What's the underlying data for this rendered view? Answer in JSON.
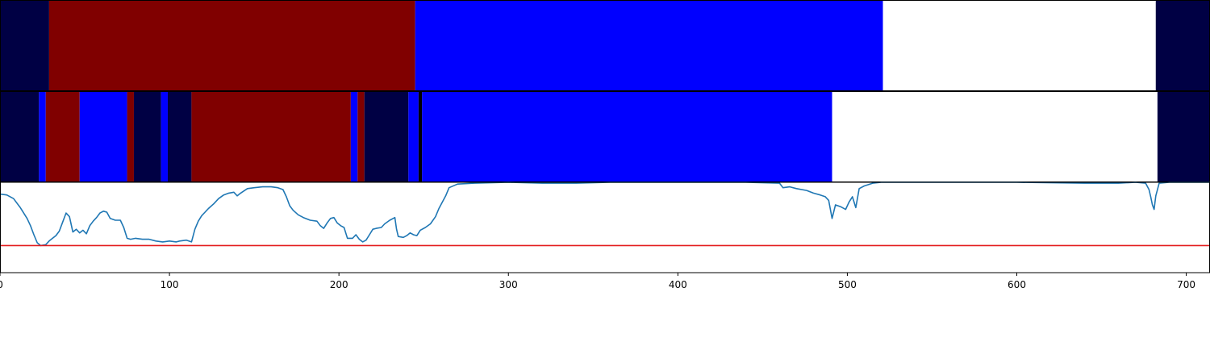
{
  "chart_data": {
    "type": "segmentation-timeline",
    "xlim": [
      0,
      714
    ],
    "x_ticks": [
      0,
      100,
      200,
      300,
      400,
      500,
      600,
      700
    ],
    "x_tick_labels": [
      "0",
      "100",
      "200",
      "300",
      "400",
      "500",
      "600",
      "700"
    ],
    "class_colors": {
      "navy": "#000044",
      "maroon": "#800000",
      "blue": "#0000ff",
      "white": "#ffffff",
      "black": "#000000"
    },
    "rows": [
      {
        "segments": [
          {
            "start": 0,
            "end": 29,
            "class": "navy"
          },
          {
            "start": 29,
            "end": 245,
            "class": "maroon"
          },
          {
            "start": 245,
            "end": 521,
            "class": "blue"
          },
          {
            "start": 521,
            "end": 682,
            "class": "white"
          },
          {
            "start": 682,
            "end": 714,
            "class": "navy"
          }
        ]
      },
      {
        "segments": [
          {
            "start": 0,
            "end": 23,
            "class": "navy"
          },
          {
            "start": 23,
            "end": 27,
            "class": "blue"
          },
          {
            "start": 27,
            "end": 47,
            "class": "maroon"
          },
          {
            "start": 47,
            "end": 75,
            "class": "blue"
          },
          {
            "start": 75,
            "end": 79,
            "class": "maroon"
          },
          {
            "start": 79,
            "end": 95,
            "class": "navy"
          },
          {
            "start": 95,
            "end": 99,
            "class": "blue"
          },
          {
            "start": 99,
            "end": 113,
            "class": "navy"
          },
          {
            "start": 113,
            "end": 207,
            "class": "maroon"
          },
          {
            "start": 207,
            "end": 211,
            "class": "blue"
          },
          {
            "start": 211,
            "end": 215,
            "class": "maroon"
          },
          {
            "start": 215,
            "end": 241,
            "class": "navy"
          },
          {
            "start": 241,
            "end": 247,
            "class": "blue"
          },
          {
            "start": 247,
            "end": 249,
            "class": "black"
          },
          {
            "start": 249,
            "end": 491,
            "class": "blue"
          },
          {
            "start": 491,
            "end": 683,
            "class": "white"
          },
          {
            "start": 683,
            "end": 714,
            "class": "navy"
          }
        ]
      }
    ],
    "line_panel": {
      "ylim": [
        0,
        1
      ],
      "threshold": 0.3,
      "line_color": "#1f77b4",
      "threshold_color": "#e31a1c",
      "points": [
        [
          0,
          0.87
        ],
        [
          4,
          0.86
        ],
        [
          8,
          0.82
        ],
        [
          12,
          0.72
        ],
        [
          16,
          0.6
        ],
        [
          18,
          0.52
        ],
        [
          20,
          0.42
        ],
        [
          22,
          0.33
        ],
        [
          24,
          0.3
        ],
        [
          27,
          0.31
        ],
        [
          29,
          0.35
        ],
        [
          31,
          0.38
        ],
        [
          33,
          0.41
        ],
        [
          35,
          0.46
        ],
        [
          37,
          0.56
        ],
        [
          39,
          0.66
        ],
        [
          41,
          0.62
        ],
        [
          43,
          0.45
        ],
        [
          45,
          0.48
        ],
        [
          47,
          0.44
        ],
        [
          49,
          0.47
        ],
        [
          51,
          0.43
        ],
        [
          53,
          0.52
        ],
        [
          55,
          0.57
        ],
        [
          57,
          0.61
        ],
        [
          59,
          0.66
        ],
        [
          61,
          0.68
        ],
        [
          63,
          0.67
        ],
        [
          65,
          0.6
        ],
        [
          68,
          0.58
        ],
        [
          71,
          0.58
        ],
        [
          73,
          0.5
        ],
        [
          75,
          0.38
        ],
        [
          77,
          0.37
        ],
        [
          80,
          0.38
        ],
        [
          84,
          0.37
        ],
        [
          88,
          0.37
        ],
        [
          92,
          0.35
        ],
        [
          96,
          0.34
        ],
        [
          100,
          0.35
        ],
        [
          104,
          0.34
        ],
        [
          106,
          0.35
        ],
        [
          110,
          0.36
        ],
        [
          113,
          0.34
        ],
        [
          115,
          0.48
        ],
        [
          117,
          0.57
        ],
        [
          119,
          0.63
        ],
        [
          121,
          0.67
        ],
        [
          123,
          0.71
        ],
        [
          126,
          0.76
        ],
        [
          129,
          0.82
        ],
        [
          132,
          0.86
        ],
        [
          135,
          0.88
        ],
        [
          138,
          0.89
        ],
        [
          140,
          0.85
        ],
        [
          142,
          0.88
        ],
        [
          146,
          0.93
        ],
        [
          150,
          0.94
        ],
        [
          155,
          0.95
        ],
        [
          160,
          0.95
        ],
        [
          164,
          0.94
        ],
        [
          167,
          0.92
        ],
        [
          169,
          0.84
        ],
        [
          171,
          0.74
        ],
        [
          173,
          0.69
        ],
        [
          176,
          0.64
        ],
        [
          179,
          0.61
        ],
        [
          183,
          0.58
        ],
        [
          187,
          0.57
        ],
        [
          189,
          0.52
        ],
        [
          191,
          0.49
        ],
        [
          193,
          0.55
        ],
        [
          195,
          0.6
        ],
        [
          197,
          0.61
        ],
        [
          199,
          0.55
        ],
        [
          201,
          0.52
        ],
        [
          203,
          0.5
        ],
        [
          205,
          0.38
        ],
        [
          208,
          0.38
        ],
        [
          210,
          0.42
        ],
        [
          212,
          0.37
        ],
        [
          214,
          0.34
        ],
        [
          216,
          0.36
        ],
        [
          218,
          0.42
        ],
        [
          220,
          0.48
        ],
        [
          222,
          0.49
        ],
        [
          225,
          0.5
        ],
        [
          227,
          0.54
        ],
        [
          230,
          0.58
        ],
        [
          233,
          0.61
        ],
        [
          234,
          0.48
        ],
        [
          235,
          0.4
        ],
        [
          238,
          0.39
        ],
        [
          240,
          0.41
        ],
        [
          242,
          0.44
        ],
        [
          244,
          0.42
        ],
        [
          246,
          0.41
        ],
        [
          248,
          0.47
        ],
        [
          251,
          0.5
        ],
        [
          254,
          0.54
        ],
        [
          257,
          0.62
        ],
        [
          259,
          0.71
        ],
        [
          261,
          0.78
        ],
        [
          263,
          0.85
        ],
        [
          265,
          0.94
        ],
        [
          270,
          0.98
        ],
        [
          280,
          0.99
        ],
        [
          300,
          1.0
        ],
        [
          320,
          0.99
        ],
        [
          340,
          0.99
        ],
        [
          360,
          1.0
        ],
        [
          400,
          1.0
        ],
        [
          440,
          1.0
        ],
        [
          460,
          0.99
        ],
        [
          462,
          0.94
        ],
        [
          466,
          0.95
        ],
        [
          470,
          0.93
        ],
        [
          476,
          0.91
        ],
        [
          480,
          0.88
        ],
        [
          484,
          0.86
        ],
        [
          487,
          0.84
        ],
        [
          489,
          0.8
        ],
        [
          491,
          0.6
        ],
        [
          493,
          0.75
        ],
        [
          496,
          0.73
        ],
        [
          499,
          0.7
        ],
        [
          501,
          0.78
        ],
        [
          503,
          0.84
        ],
        [
          505,
          0.72
        ],
        [
          507,
          0.93
        ],
        [
          510,
          0.96
        ],
        [
          515,
          0.99
        ],
        [
          520,
          1.0
        ],
        [
          560,
          1.0
        ],
        [
          600,
          1.0
        ],
        [
          640,
          0.99
        ],
        [
          660,
          0.99
        ],
        [
          670,
          1.0
        ],
        [
          676,
          0.99
        ],
        [
          678,
          0.92
        ],
        [
          679,
          0.84
        ],
        [
          680,
          0.75
        ],
        [
          681,
          0.7
        ],
        [
          682,
          0.85
        ],
        [
          684,
          0.99
        ],
        [
          690,
          1.0
        ],
        [
          714,
          1.0
        ]
      ]
    }
  }
}
